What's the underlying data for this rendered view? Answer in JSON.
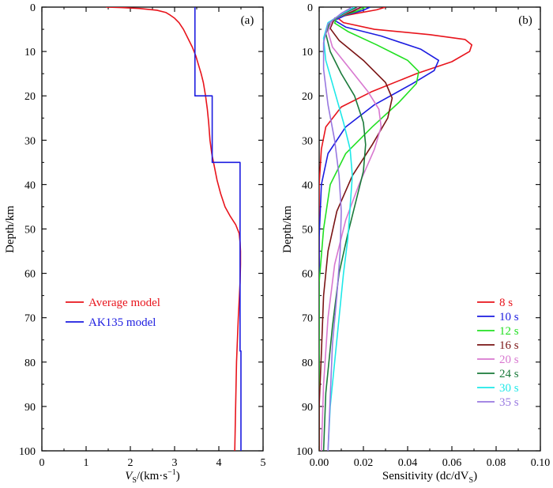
{
  "chart_data": [
    {
      "panel_label": "(a)",
      "type": "line",
      "xlabel": {
        "main": "V",
        "sub": "S",
        "rest": "/(km·s",
        "sup": "−1",
        "close": ")"
      },
      "ylabel": "Depth/km",
      "xlim": [
        0,
        5
      ],
      "ylim": [
        0,
        100
      ],
      "y_inverted": true,
      "x_ticks": [
        "0",
        "1",
        "2",
        "3",
        "4",
        "5"
      ],
      "y_ticks": [
        "0",
        "10",
        "20",
        "30",
        "40",
        "50",
        "60",
        "70",
        "80",
        "90",
        "100"
      ],
      "series": [
        {
          "name": "Average model",
          "color": "#e8141c",
          "points": [
            [
              1.45,
              0
            ],
            [
              1.8,
              0.1
            ],
            [
              2.2,
              0.3
            ],
            [
              2.6,
              0.7
            ],
            [
              2.8,
              1.2
            ],
            [
              2.9,
              1.8
            ],
            [
              3.0,
              2.5
            ],
            [
              3.1,
              3.5
            ],
            [
              3.2,
              5
            ],
            [
              3.3,
              7
            ],
            [
              3.4,
              9
            ],
            [
              3.48,
              11
            ],
            [
              3.54,
              13
            ],
            [
              3.6,
              15
            ],
            [
              3.65,
              17
            ],
            [
              3.7,
              20
            ],
            [
              3.74,
              23
            ],
            [
              3.77,
              26
            ],
            [
              3.8,
              30
            ],
            [
              3.84,
              33
            ],
            [
              3.9,
              36
            ],
            [
              3.96,
              39
            ],
            [
              4.04,
              42
            ],
            [
              4.14,
              45
            ],
            [
              4.25,
              47
            ],
            [
              4.38,
              49
            ],
            [
              4.46,
              51
            ],
            [
              4.48,
              53
            ],
            [
              4.49,
              55
            ],
            [
              4.49,
              58
            ],
            [
              4.48,
              62
            ],
            [
              4.46,
              66
            ],
            [
              4.44,
              70
            ],
            [
              4.42,
              75
            ],
            [
              4.4,
              80
            ],
            [
              4.39,
              85
            ],
            [
              4.38,
              90
            ],
            [
              4.37,
              95
            ],
            [
              4.36,
              100
            ]
          ]
        },
        {
          "name": "AK135 model",
          "color": "#1c1ce0",
          "points": [
            [
              3.46,
              0
            ],
            [
              3.46,
              20
            ],
            [
              3.85,
              20
            ],
            [
              3.85,
              35
            ],
            [
              4.48,
              35
            ],
            [
              4.48,
              77.5
            ],
            [
              4.5,
              77.5
            ],
            [
              4.5,
              100
            ]
          ]
        }
      ],
      "legend_position": "middle-left"
    },
    {
      "panel_label": "(b)",
      "type": "line",
      "xlabel": {
        "main": "Sensitivity (dc/dV",
        "sub": "S",
        "close": ")"
      },
      "ylabel": "Depth/km",
      "xlim": [
        0,
        0.1
      ],
      "ylim": [
        0,
        100
      ],
      "y_inverted": true,
      "x_ticks": [
        "0.00",
        "0.02",
        "0.04",
        "0.06",
        "0.08",
        "0.10"
      ],
      "y_ticks": [
        "0",
        "10",
        "20",
        "30",
        "40",
        "50",
        "60",
        "70",
        "80",
        "90",
        "100"
      ],
      "series": [
        {
          "name": "8 s",
          "color": "#e8141c",
          "points": [
            [
              0.03,
              0
            ],
            [
              0.026,
              0.6
            ],
            [
              0.016,
              1.5
            ],
            [
              0.008,
              2.3
            ],
            [
              0.011,
              3.5
            ],
            [
              0.025,
              5
            ],
            [
              0.05,
              6.2
            ],
            [
              0.066,
              7.3
            ],
            [
              0.069,
              8.5
            ],
            [
              0.068,
              10
            ],
            [
              0.06,
              12.3
            ],
            [
              0.044,
              15
            ],
            [
              0.024,
              19
            ],
            [
              0.01,
              22.5
            ],
            [
              0.003,
              27
            ],
            [
              0.001,
              32
            ],
            [
              0,
              40
            ],
            [
              0,
              100
            ]
          ]
        },
        {
          "name": "10 s",
          "color": "#1c1ce0",
          "points": [
            [
              0.023,
              0
            ],
            [
              0.02,
              0.7
            ],
            [
              0.012,
              1.8
            ],
            [
              0.007,
              3
            ],
            [
              0.012,
              4.5
            ],
            [
              0.028,
              6.5
            ],
            [
              0.046,
              9.5
            ],
            [
              0.054,
              12
            ],
            [
              0.052,
              14.3
            ],
            [
              0.042,
              17.3
            ],
            [
              0.025,
              22
            ],
            [
              0.012,
              27
            ],
            [
              0.004,
              33
            ],
            [
              0.001,
              40
            ],
            [
              0,
              52
            ],
            [
              0,
              100
            ]
          ]
        },
        {
          "name": "12 s",
          "color": "#22e022",
          "points": [
            [
              0.021,
              0
            ],
            [
              0.017,
              0.9
            ],
            [
              0.008,
              2.3
            ],
            [
              0.007,
              3.6
            ],
            [
              0.013,
              5.5
            ],
            [
              0.026,
              8.5
            ],
            [
              0.04,
              12
            ],
            [
              0.045,
              14.5
            ],
            [
              0.044,
              17.2
            ],
            [
              0.036,
              21.5
            ],
            [
              0.024,
              27
            ],
            [
              0.012,
              33
            ],
            [
              0.005,
              40
            ],
            [
              0.002,
              50
            ],
            [
              0,
              62
            ],
            [
              0,
              100
            ]
          ]
        },
        {
          "name": "16 s",
          "color": "#7a1414",
          "points": [
            [
              0.019,
              0
            ],
            [
              0.015,
              1
            ],
            [
              0.007,
              2.5
            ],
            [
              0.005,
              4.8
            ],
            [
              0.009,
              7.5
            ],
            [
              0.02,
              12
            ],
            [
              0.03,
              17
            ],
            [
              0.033,
              20.5
            ],
            [
              0.031,
              25
            ],
            [
              0.024,
              31
            ],
            [
              0.015,
              38
            ],
            [
              0.008,
              46
            ],
            [
              0.004,
              55
            ],
            [
              0.002,
              65
            ],
            [
              0.001,
              78
            ],
            [
              0,
              90
            ],
            [
              0,
              100
            ]
          ]
        },
        {
          "name": "20 s",
          "color": "#d878d0",
          "points": [
            [
              0.018,
              0
            ],
            [
              0.013,
              1.1
            ],
            [
              0.006,
              3
            ],
            [
              0.004,
              5.5
            ],
            [
              0.006,
              9
            ],
            [
              0.014,
              14
            ],
            [
              0.022,
              19
            ],
            [
              0.027,
              23
            ],
            [
              0.028,
              27
            ],
            [
              0.025,
              32
            ],
            [
              0.018,
              40
            ],
            [
              0.012,
              48
            ],
            [
              0.007,
              58
            ],
            [
              0.004,
              70
            ],
            [
              0.002,
              85
            ],
            [
              0.001,
              100
            ]
          ]
        },
        {
          "name": "24 s",
          "color": "#1a7a3a",
          "points": [
            [
              0.017,
              0
            ],
            [
              0.012,
              1.2
            ],
            [
              0.005,
              3.3
            ],
            [
              0.003,
              6
            ],
            [
              0.005,
              10
            ],
            [
              0.01,
              15
            ],
            [
              0.016,
              20
            ],
            [
              0.02,
              26
            ],
            [
              0.021,
              31
            ],
            [
              0.02,
              37
            ],
            [
              0.017,
              43
            ],
            [
              0.013,
              51
            ],
            [
              0.009,
              60
            ],
            [
              0.006,
              72
            ],
            [
              0.003,
              87
            ],
            [
              0.002,
              100
            ]
          ]
        },
        {
          "name": "30 s",
          "color": "#1ee8e8",
          "points": [
            [
              0.016,
              0
            ],
            [
              0.011,
              1.3
            ],
            [
              0.004,
              3.5
            ],
            [
              0.002,
              7
            ],
            [
              0.003,
              12
            ],
            [
              0.007,
              19
            ],
            [
              0.011,
              26
            ],
            [
              0.014,
              32
            ],
            [
              0.015,
              38
            ],
            [
              0.014,
              45
            ],
            [
              0.013,
              52
            ],
            [
              0.011,
              60
            ],
            [
              0.009,
              70
            ],
            [
              0.007,
              80
            ],
            [
              0.005,
              90
            ],
            [
              0.004,
              100
            ]
          ]
        },
        {
          "name": "35 s",
          "color": "#9878e0",
          "points": [
            [
              0.015,
              0
            ],
            [
              0.01,
              1.4
            ],
            [
              0.004,
              3.8
            ],
            [
              0.002,
              8
            ],
            [
              0.002,
              14
            ],
            [
              0.004,
              22
            ],
            [
              0.007,
              30
            ],
            [
              0.009,
              38
            ],
            [
              0.01,
              46
            ],
            [
              0.0095,
              55
            ],
            [
              0.008,
              65
            ],
            [
              0.006,
              76
            ],
            [
              0.005,
              88
            ],
            [
              0.004,
              100
            ]
          ]
        }
      ],
      "legend_position": "bottom-right"
    }
  ]
}
